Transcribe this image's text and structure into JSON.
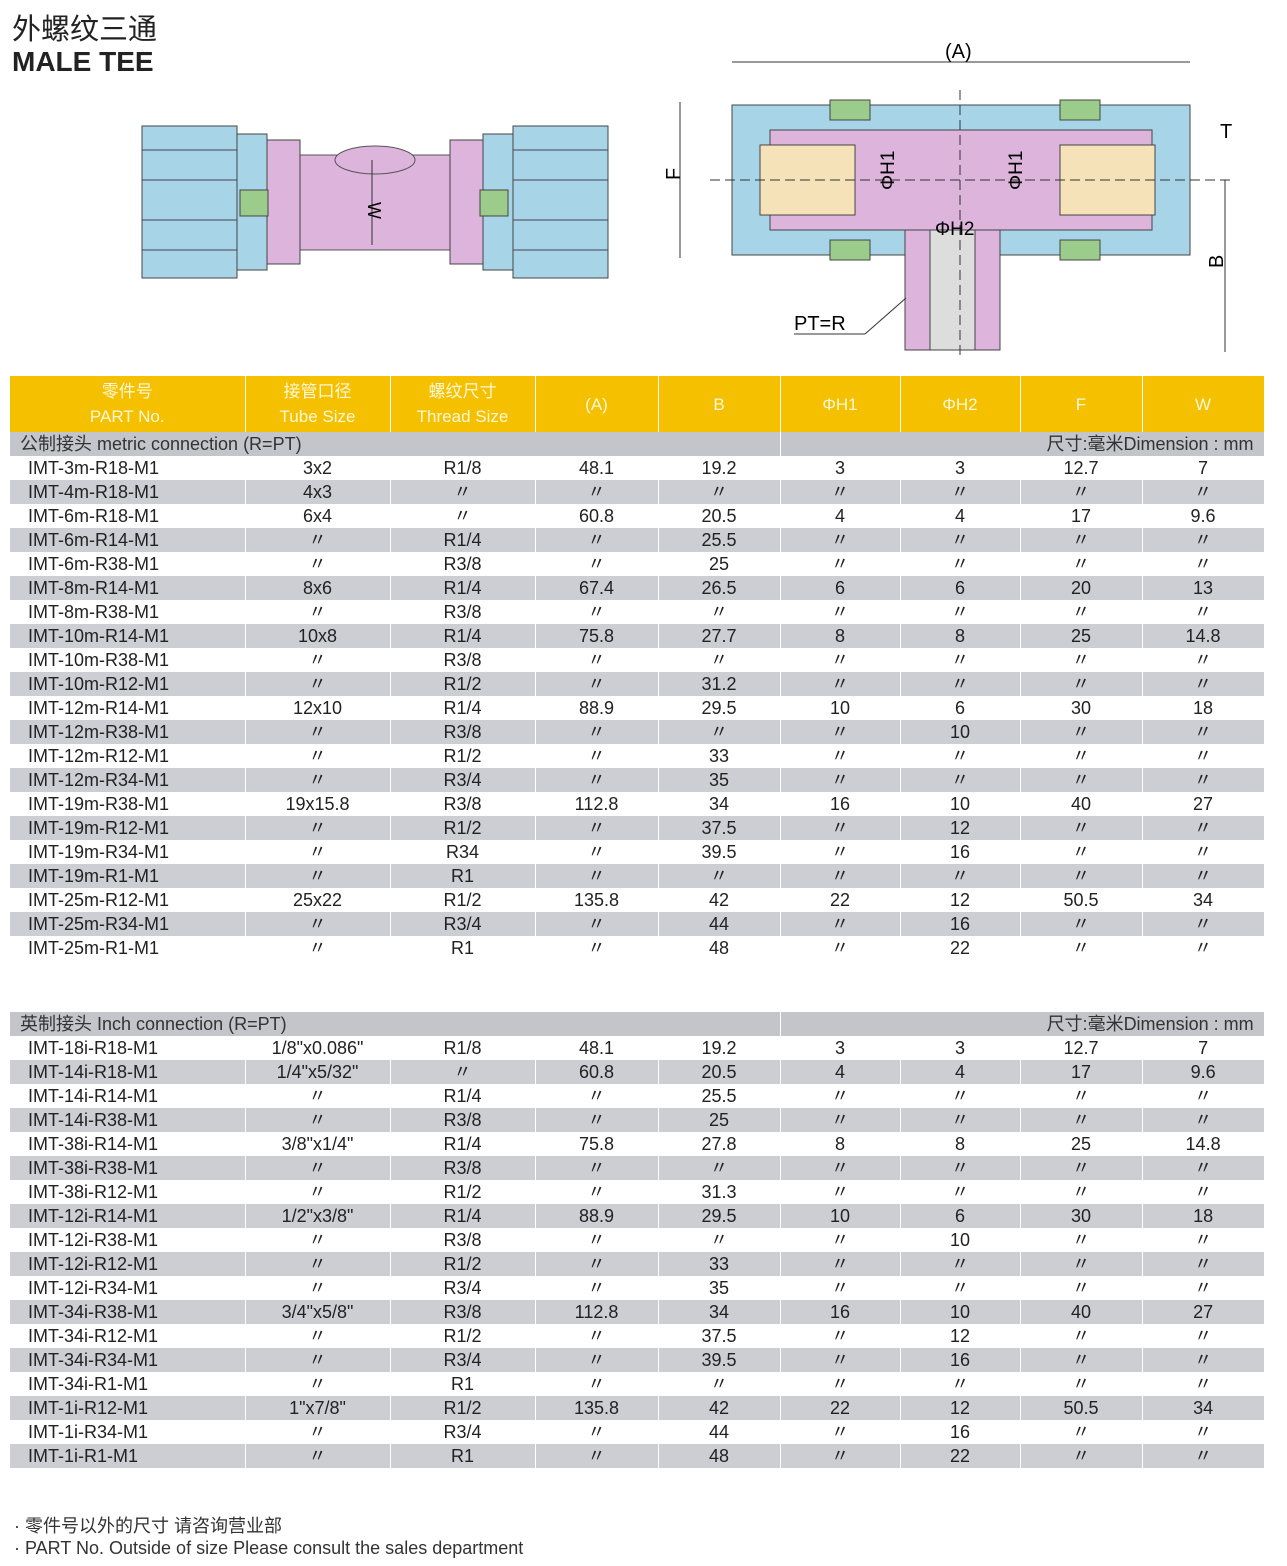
{
  "title_cn": "外螺纹三通",
  "title_en": "MALE TEE",
  "diagram_labels": {
    "A": "(A)",
    "F": "F",
    "W": "W",
    "T": "T",
    "B": "B",
    "H1": "ΦH1",
    "H2": "ΦH2",
    "PT": "PT=R"
  },
  "colors": {
    "header": "#f5c000",
    "row_alt": "#ccced3",
    "pink": "#dcb4dc",
    "blue": "#a8d4e8",
    "green": "#9ccc8c"
  },
  "headers": [
    [
      "零件号",
      "PART No."
    ],
    [
      "接管口径",
      "Tube Size"
    ],
    [
      "螺纹尺寸",
      "Thread Size"
    ],
    [
      "(A)",
      ""
    ],
    [
      "B",
      ""
    ],
    [
      "ΦH1",
      ""
    ],
    [
      "ΦH2",
      ""
    ],
    [
      "F",
      ""
    ],
    [
      "W",
      ""
    ]
  ],
  "metric": {
    "label": "公制接头 metric connection (R=PT)",
    "unit": "尺寸:毫米Dimension : mm",
    "rows": [
      [
        "IMT-3m-R18-M1",
        "3x2",
        "R1/8",
        "48.1",
        "19.2",
        "3",
        "3",
        "12.7",
        "7"
      ],
      [
        "IMT-4m-R18-M1",
        "4x3",
        "〃",
        "〃",
        "〃",
        "〃",
        "〃",
        "〃",
        "〃"
      ],
      [
        "IMT-6m-R18-M1",
        "6x4",
        "〃",
        "60.8",
        "20.5",
        "4",
        "4",
        "17",
        "9.6"
      ],
      [
        "IMT-6m-R14-M1",
        "〃",
        "R1/4",
        "〃",
        "25.5",
        "〃",
        "〃",
        "〃",
        "〃"
      ],
      [
        "IMT-6m-R38-M1",
        "〃",
        "R3/8",
        "〃",
        "25",
        "〃",
        "〃",
        "〃",
        "〃"
      ],
      [
        "IMT-8m-R14-M1",
        "8x6",
        "R1/4",
        "67.4",
        "26.5",
        "6",
        "6",
        "20",
        "13"
      ],
      [
        "IMT-8m-R38-M1",
        "〃",
        "R3/8",
        "〃",
        "〃",
        "〃",
        "〃",
        "〃",
        "〃"
      ],
      [
        "IMT-10m-R14-M1",
        "10x8",
        "R1/4",
        "75.8",
        "27.7",
        "8",
        "8",
        "25",
        "14.8"
      ],
      [
        "IMT-10m-R38-M1",
        "〃",
        "R3/8",
        "〃",
        "〃",
        "〃",
        "〃",
        "〃",
        "〃"
      ],
      [
        "IMT-10m-R12-M1",
        "〃",
        "R1/2",
        "〃",
        "31.2",
        "〃",
        "〃",
        "〃",
        "〃"
      ],
      [
        "IMT-12m-R14-M1",
        "12x10",
        "R1/4",
        "88.9",
        "29.5",
        "10",
        "6",
        "30",
        "18"
      ],
      [
        "IMT-12m-R38-M1",
        "〃",
        "R3/8",
        "〃",
        "〃",
        "〃",
        "10",
        "〃",
        "〃"
      ],
      [
        "IMT-12m-R12-M1",
        "〃",
        "R1/2",
        "〃",
        "33",
        "〃",
        "〃",
        "〃",
        "〃"
      ],
      [
        "IMT-12m-R34-M1",
        "〃",
        "R3/4",
        "〃",
        "35",
        "〃",
        "〃",
        "〃",
        "〃"
      ],
      [
        "IMT-19m-R38-M1",
        "19x15.8",
        "R3/8",
        "112.8",
        "34",
        "16",
        "10",
        "40",
        "27"
      ],
      [
        "IMT-19m-R12-M1",
        "〃",
        "R1/2",
        "〃",
        "37.5",
        "〃",
        "12",
        "〃",
        "〃"
      ],
      [
        "IMT-19m-R34-M1",
        "〃",
        "R34",
        "〃",
        "39.5",
        "〃",
        "16",
        "〃",
        "〃"
      ],
      [
        "IMT-19m-R1-M1",
        "〃",
        "R1",
        "〃",
        "〃",
        "〃",
        "〃",
        "〃",
        "〃"
      ],
      [
        "IMT-25m-R12-M1",
        "25x22",
        "R1/2",
        "135.8",
        "42",
        "22",
        "12",
        "50.5",
        "34"
      ],
      [
        "IMT-25m-R34-M1",
        "〃",
        "R3/4",
        "〃",
        "44",
        "〃",
        "16",
        "〃",
        "〃"
      ],
      [
        "IMT-25m-R1-M1",
        "〃",
        "R1",
        "〃",
        "48",
        "〃",
        "22",
        "〃",
        "〃"
      ]
    ]
  },
  "inch": {
    "label": "英制接头 Inch connection (R=PT)",
    "unit": "尺寸:毫米Dimension : mm",
    "rows": [
      [
        "IMT-18i-R18-M1",
        "1/8\"x0.086\"",
        "R1/8",
        "48.1",
        "19.2",
        "3",
        "3",
        "12.7",
        "7"
      ],
      [
        "IMT-14i-R18-M1",
        "1/4\"x5/32\"",
        "〃",
        "60.8",
        "20.5",
        "4",
        "4",
        "17",
        "9.6"
      ],
      [
        "IMT-14i-R14-M1",
        "〃",
        "R1/4",
        "〃",
        "25.5",
        "〃",
        "〃",
        "〃",
        "〃"
      ],
      [
        "IMT-14i-R38-M1",
        "〃",
        "R3/8",
        "〃",
        "25",
        "〃",
        "〃",
        "〃",
        "〃"
      ],
      [
        "IMT-38i-R14-M1",
        "3/8\"x1/4\"",
        "R1/4",
        "75.8",
        "27.8",
        "8",
        "8",
        "25",
        "14.8"
      ],
      [
        "IMT-38i-R38-M1",
        "〃",
        "R3/8",
        "〃",
        "〃",
        "〃",
        "〃",
        "〃",
        "〃"
      ],
      [
        "IMT-38i-R12-M1",
        "〃",
        "R1/2",
        "〃",
        "31.3",
        "〃",
        "〃",
        "〃",
        "〃"
      ],
      [
        "IMT-12i-R14-M1",
        "1/2\"x3/8\"",
        "R1/4",
        "88.9",
        "29.5",
        "10",
        "6",
        "30",
        "18"
      ],
      [
        "IMT-12i-R38-M1",
        "〃",
        "R3/8",
        "〃",
        "〃",
        "〃",
        "10",
        "〃",
        "〃"
      ],
      [
        "IMT-12i-R12-M1",
        "〃",
        "R1/2",
        "〃",
        "33",
        "〃",
        "〃",
        "〃",
        "〃"
      ],
      [
        "IMT-12i-R34-M1",
        "〃",
        "R3/4",
        "〃",
        "35",
        "〃",
        "〃",
        "〃",
        "〃"
      ],
      [
        "IMT-34i-R38-M1",
        "3/4\"x5/8\"",
        "R3/8",
        "112.8",
        "34",
        "16",
        "10",
        "40",
        "27"
      ],
      [
        "IMT-34i-R12-M1",
        "〃",
        "R1/2",
        "〃",
        "37.5",
        "〃",
        "12",
        "〃",
        "〃"
      ],
      [
        "IMT-34i-R34-M1",
        "〃",
        "R3/4",
        "〃",
        "39.5",
        "〃",
        "16",
        "〃",
        "〃"
      ],
      [
        "IMT-34i-R1-M1",
        "〃",
        "R1",
        "〃",
        "〃",
        "〃",
        "〃",
        "〃",
        "〃"
      ],
      [
        "IMT-1i-R12-M1",
        "1\"x7/8\"",
        "R1/2",
        "135.8",
        "42",
        "22",
        "12",
        "50.5",
        "34"
      ],
      [
        "IMT-1i-R34-M1",
        "〃",
        "R3/4",
        "〃",
        "44",
        "〃",
        "16",
        "〃",
        "〃"
      ],
      [
        "IMT-1i-R1-M1",
        "〃",
        "R1",
        "〃",
        "48",
        "〃",
        "22",
        "〃",
        "〃"
      ]
    ]
  },
  "notes": [
    "· 零件号以外的尺寸 请咨询营业部",
    "· PART No. Outside of size Please consult the sales department"
  ]
}
